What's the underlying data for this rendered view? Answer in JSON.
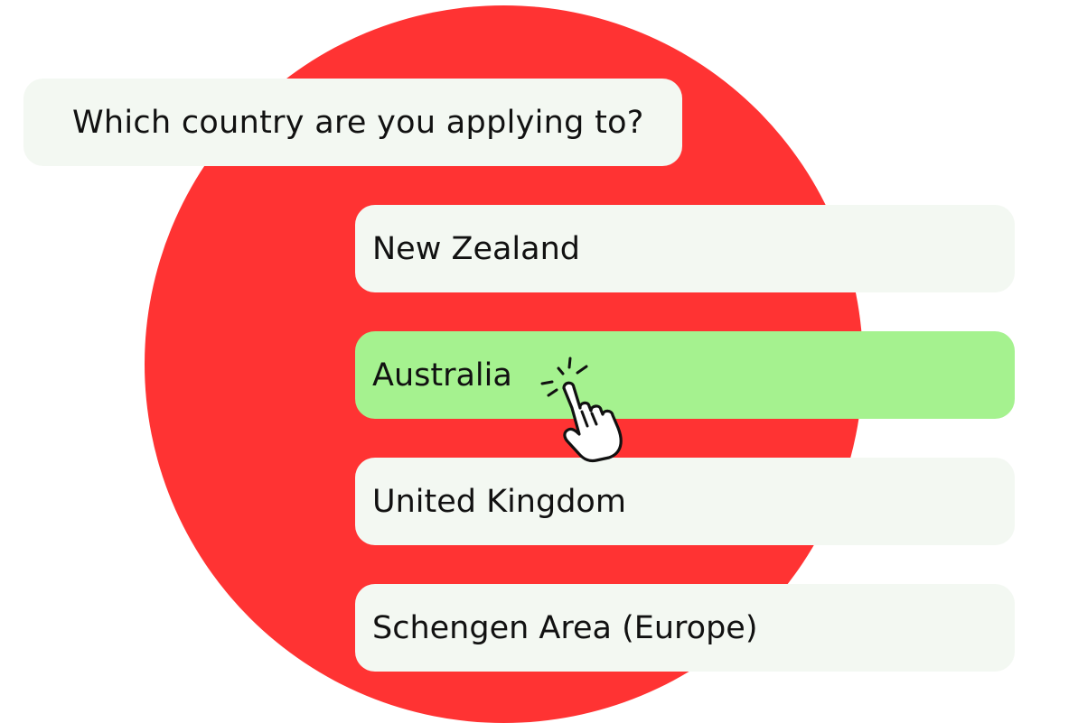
{
  "question": {
    "text": "Which country are you applying to?"
  },
  "options": [
    {
      "label": "New Zealand",
      "selected": false
    },
    {
      "label": "Australia",
      "selected": true
    },
    {
      "label": "United Kingdom",
      "selected": false
    },
    {
      "label": "Schengen Area (Europe)",
      "selected": false
    }
  ],
  "icons": {
    "cursor": "hand-pointer-click-icon"
  },
  "colors": {
    "background_circle": "#ff3333",
    "card": "#f3f8f2",
    "selected_card": "#a5f28f",
    "text": "#111111"
  }
}
